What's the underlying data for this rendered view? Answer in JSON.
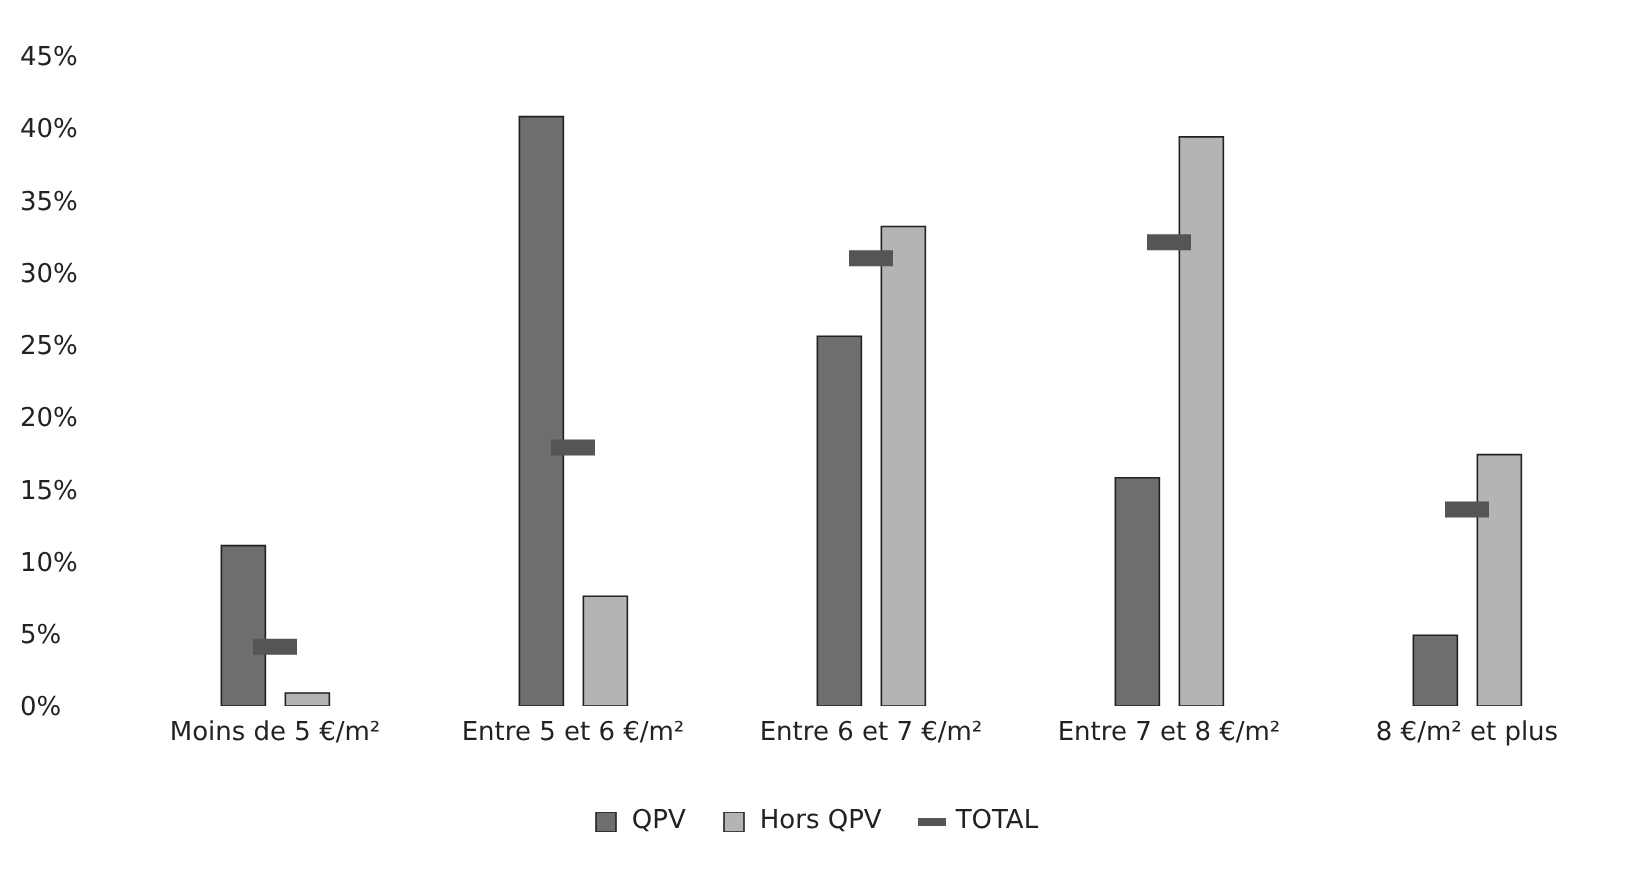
{
  "chart_data": {
    "type": "bar",
    "categories": [
      "Moins de 5 €/m²",
      "Entre 5 et 6 €/m²",
      "Entre 6 et 7 €/m²",
      "Entre 7 et 8 €/m²",
      "8 €/m² et plus"
    ],
    "series": [
      {
        "name": "QPV",
        "color": "#6e6e6e",
        "values": [
          11.1,
          40.8,
          25.6,
          15.8,
          4.9
        ]
      },
      {
        "name": "Hors QPV",
        "color": "#b4b4b4",
        "values": [
          0.9,
          7.6,
          33.2,
          39.4,
          17.4
        ]
      },
      {
        "name": "TOTAL",
        "type": "scatter",
        "color": "#555555",
        "values": [
          4.1,
          17.9,
          31.0,
          32.1,
          13.6
        ]
      }
    ],
    "ylim": [
      0,
      45
    ],
    "yticks": [
      {
        "value": 0,
        "label": "0%"
      },
      {
        "value": 5,
        "label": "5%"
      },
      {
        "value": 10,
        "label": "10%"
      },
      {
        "value": 15,
        "label": "15%"
      },
      {
        "value": 20,
        "label": "20%"
      },
      {
        "value": 25,
        "label": "25%"
      },
      {
        "value": 30,
        "label": "30%"
      },
      {
        "value": 35,
        "label": "35%"
      },
      {
        "value": 40,
        "label": "40%"
      },
      {
        "value": 45,
        "label": "45%"
      }
    ],
    "grid": false,
    "legend": "bottom"
  }
}
